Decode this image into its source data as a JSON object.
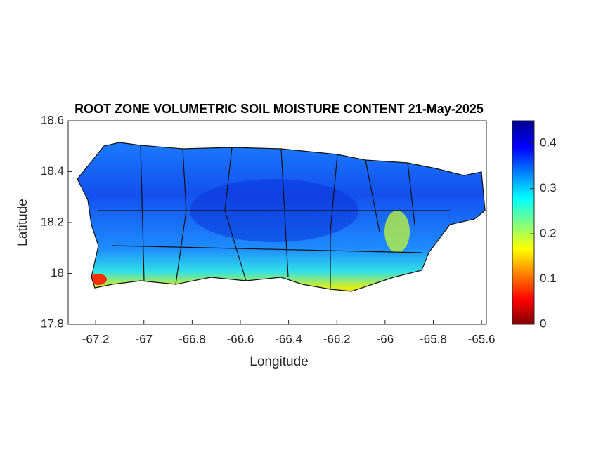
{
  "chart_data": {
    "type": "map",
    "title": "ROOT ZONE VOLUMETRIC SOIL MOISTURE CONTENT 21-May-2025",
    "x_label": "Longitude",
    "y_label": "Latitude",
    "xlim": [
      -67.314,
      -65.58
    ],
    "ylim": [
      17.8,
      18.6
    ],
    "xticks": [
      -67.2,
      -67,
      -66.8,
      -66.6,
      -66.4,
      -66.2,
      -66,
      -65.8,
      -65.6
    ],
    "yticks": [
      17.8,
      18,
      18.2,
      18.4,
      18.6
    ],
    "colorbar": {
      "clim": [
        0,
        0.45
      ],
      "ticks": [
        0,
        0.1,
        0.2,
        0.3,
        0.4
      ],
      "colormap": "jet-reversed"
    }
  }
}
